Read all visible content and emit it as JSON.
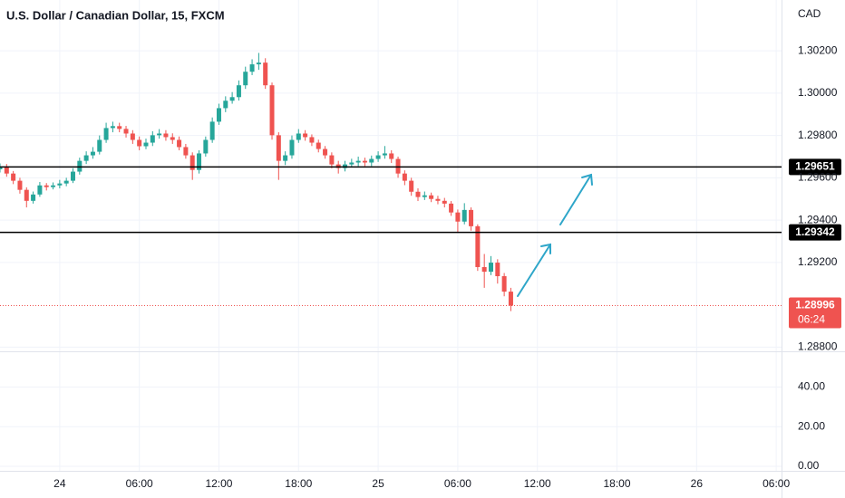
{
  "chart_data": {
    "type": "candlestick",
    "title": "U.S. Dollar / Canadian Dollar, 15, FXCM",
    "currency": "CAD",
    "up_color": "#26a69a",
    "down_color": "#ef5350",
    "grid": true,
    "xlim": [
      -4.5,
      54.4
    ],
    "xticks": [
      {
        "value": 0,
        "label": "24"
      },
      {
        "value": 6,
        "label": "06:00"
      },
      {
        "value": 12,
        "label": "12:00"
      },
      {
        "value": 18,
        "label": "18:00"
      },
      {
        "value": 24,
        "label": "25"
      },
      {
        "value": 30,
        "label": "06:00"
      },
      {
        "value": 36,
        "label": "12:00"
      },
      {
        "value": 42,
        "label": "18:00"
      },
      {
        "value": 48,
        "label": "26"
      },
      {
        "value": 54,
        "label": "06:00"
      }
    ],
    "ylim": [
      1.2878,
      1.3044
    ],
    "yticks": [
      {
        "value": 1.302,
        "label": "1.30200"
      },
      {
        "value": 1.3,
        "label": "1.30000"
      },
      {
        "value": 1.298,
        "label": "1.29800"
      },
      {
        "value": 1.296,
        "label": "1.29600"
      },
      {
        "value": 1.294,
        "label": "1.29400"
      },
      {
        "value": 1.292,
        "label": "1.29200"
      },
      {
        "value": 1.288,
        "label": "1.28800"
      }
    ],
    "levels": [
      {
        "value": 1.29651,
        "label": "1.29651"
      },
      {
        "value": 1.29342,
        "label": "1.29342"
      }
    ],
    "last_price": {
      "value": 1.28996,
      "label": "1.28996"
    },
    "countdown": "06:24",
    "x": [
      -4.5,
      -4,
      -3.5,
      -3,
      -2.5,
      -2,
      -1.5,
      -1,
      -0.5,
      0,
      0.5,
      1,
      1.5,
      2,
      2.5,
      3,
      3.5,
      4,
      4.5,
      5,
      5.5,
      6,
      6.5,
      7,
      7.5,
      8,
      8.5,
      9,
      9.5,
      10,
      10.5,
      11,
      11.5,
      12,
      12.5,
      13,
      13.5,
      14,
      14.5,
      15,
      15.5,
      16,
      16.5,
      17,
      17.5,
      18,
      18.5,
      19,
      19.5,
      20,
      20.5,
      21,
      21.5,
      22,
      22.5,
      23,
      23.5,
      24,
      24.5,
      25,
      25.5,
      26,
      26.5,
      27,
      27.5,
      28,
      28.5,
      29,
      29.5,
      30,
      30.5,
      31,
      31.5,
      32,
      32.5,
      33,
      33.5,
      34
    ],
    "open": [
      1.2964,
      1.2965,
      1.2962,
      1.29586,
      1.29543,
      1.29491,
      1.29521,
      1.29564,
      1.29556,
      1.29564,
      1.29573,
      1.29586,
      1.29629,
      1.2968,
      1.29706,
      1.29723,
      1.29779,
      1.29835,
      1.29844,
      1.29831,
      1.29809,
      1.29779,
      1.29749,
      1.29766,
      1.29801,
      1.29809,
      1.29792,
      1.29779,
      1.29745,
      1.29706,
      1.29637,
      1.29715,
      1.29779,
      1.29865,
      1.29929,
      1.29964,
      1.29981,
      1.30037,
      1.30101,
      1.30136,
      1.30144,
      1.30037,
      1.29801,
      1.2968,
      1.29706,
      1.29779,
      1.29809,
      1.29792,
      1.29766,
      1.29736,
      1.29706,
      1.29663,
      1.29646,
      1.29663,
      1.29672,
      1.2968,
      1.29672,
      1.29689,
      1.29706,
      1.29715,
      1.29689,
      1.2962,
      1.29586,
      1.29534,
      1.29509,
      1.29517,
      1.295,
      1.29491,
      1.29478,
      1.29436,
      1.29393,
      1.29448,
      1.29371,
      1.29178,
      1.29156,
      1.29199,
      1.29135,
      1.29062
    ],
    "high": [
      1.29668,
      1.29665,
      1.29632,
      1.296,
      1.29555,
      1.29535,
      1.2958,
      1.29575,
      1.29578,
      1.2959,
      1.296,
      1.29645,
      1.29695,
      1.29725,
      1.29745,
      1.298,
      1.2986,
      1.29865,
      1.2986,
      1.29845,
      1.29825,
      1.29795,
      1.29785,
      1.2982,
      1.2983,
      1.29825,
      1.2981,
      1.29795,
      1.2976,
      1.2972,
      1.2973,
      1.29795,
      1.29885,
      1.2995,
      1.29985,
      1.30005,
      1.3006,
      1.30125,
      1.3016,
      1.3019,
      1.30165,
      1.3005,
      1.29815,
      1.29725,
      1.298,
      1.2983,
      1.29825,
      1.29805,
      1.2978,
      1.2975,
      1.2972,
      1.2968,
      1.2968,
      1.2969,
      1.297,
      1.29695,
      1.29705,
      1.29725,
      1.2975,
      1.2973,
      1.297,
      1.29635,
      1.296,
      1.2955,
      1.29535,
      1.2953,
      1.29515,
      1.29505,
      1.2949,
      1.2945,
      1.2948,
      1.2946,
      1.2938,
      1.2924,
      1.2923,
      1.29215,
      1.2915,
      1.2908
    ],
    "low": [
      1.29625,
      1.29605,
      1.2957,
      1.29525,
      1.2946,
      1.29478,
      1.2951,
      1.2954,
      1.29545,
      1.2955,
      1.2956,
      1.29575,
      1.29615,
      1.29665,
      1.2969,
      1.2971,
      1.29765,
      1.29815,
      1.29815,
      1.2979,
      1.2976,
      1.2973,
      1.29735,
      1.2975,
      1.29785,
      1.29775,
      1.2976,
      1.2973,
      1.2969,
      1.2959,
      1.2962,
      1.297,
      1.29765,
      1.2985,
      1.2991,
      1.2995,
      1.29965,
      1.3002,
      1.30085,
      1.3011,
      1.3002,
      1.2978,
      1.2959,
      1.2966,
      1.2969,
      1.29765,
      1.29775,
      1.2975,
      1.2972,
      1.2969,
      1.29645,
      1.2962,
      1.2963,
      1.2965,
      1.29655,
      1.29655,
      1.29655,
      1.29675,
      1.2969,
      1.2967,
      1.296,
      1.29565,
      1.29515,
      1.2949,
      1.29495,
      1.29485,
      1.29475,
      1.2946,
      1.2942,
      1.2934,
      1.2938,
      1.2935,
      1.2916,
      1.2908,
      1.2914,
      1.291,
      1.2904,
      1.2897
    ],
    "close": [
      1.2965,
      1.2962,
      1.29586,
      1.29543,
      1.29491,
      1.29521,
      1.29564,
      1.29556,
      1.29564,
      1.29573,
      1.29586,
      1.29629,
      1.2968,
      1.29706,
      1.29723,
      1.29779,
      1.29835,
      1.29844,
      1.29831,
      1.29809,
      1.29779,
      1.29749,
      1.29766,
      1.29801,
      1.29809,
      1.29792,
      1.29779,
      1.29745,
      1.29706,
      1.29637,
      1.29715,
      1.29779,
      1.29865,
      1.29929,
      1.29964,
      1.29981,
      1.30037,
      1.30101,
      1.30136,
      1.30144,
      1.30037,
      1.29801,
      1.2968,
      1.29706,
      1.29779,
      1.29809,
      1.29792,
      1.29766,
      1.29736,
      1.29706,
      1.29663,
      1.29646,
      1.29663,
      1.29672,
      1.2968,
      1.29672,
      1.29689,
      1.29706,
      1.29715,
      1.29689,
      1.2962,
      1.29586,
      1.29534,
      1.29509,
      1.29517,
      1.295,
      1.29491,
      1.29478,
      1.29436,
      1.29393,
      1.29448,
      1.29371,
      1.29178,
      1.29156,
      1.29199,
      1.29135,
      1.29062,
      1.28996
    ],
    "indicator_ylim": [
      0,
      58
    ],
    "indicator_yticks": [
      {
        "value": 40,
        "label": "40.00"
      },
      {
        "value": 20,
        "label": "20.00"
      },
      {
        "value": 0,
        "label": "0.00"
      }
    ]
  }
}
